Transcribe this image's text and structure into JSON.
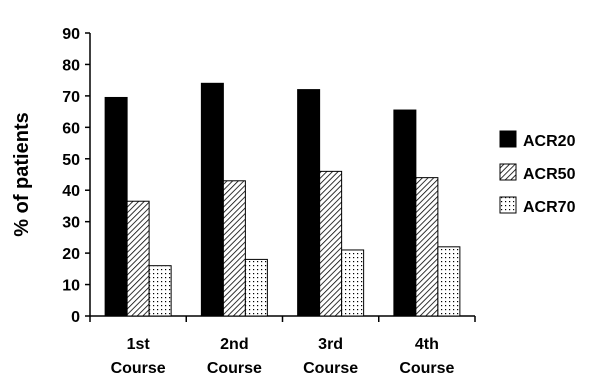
{
  "chart_data": {
    "type": "bar",
    "title": "",
    "xlabel": "",
    "ylabel": "% of patients",
    "ylim": [
      0,
      90
    ],
    "yticks": [
      0,
      10,
      20,
      30,
      40,
      50,
      60,
      70,
      80,
      90
    ],
    "grid": false,
    "legend_position": "right",
    "categories": [
      [
        "1st",
        "Course"
      ],
      [
        "2nd",
        "Course"
      ],
      [
        "3rd",
        "Course"
      ],
      [
        "4th",
        "Course"
      ]
    ],
    "series": [
      {
        "name": "ACR20",
        "pattern": "solid-black",
        "values": [
          69.5,
          74,
          72,
          65.5
        ]
      },
      {
        "name": "ACR50",
        "pattern": "diagonal-hatch",
        "values": [
          36.5,
          43,
          46,
          44
        ]
      },
      {
        "name": "ACR70",
        "pattern": "dotted",
        "values": [
          16,
          18,
          21,
          22
        ]
      }
    ]
  }
}
